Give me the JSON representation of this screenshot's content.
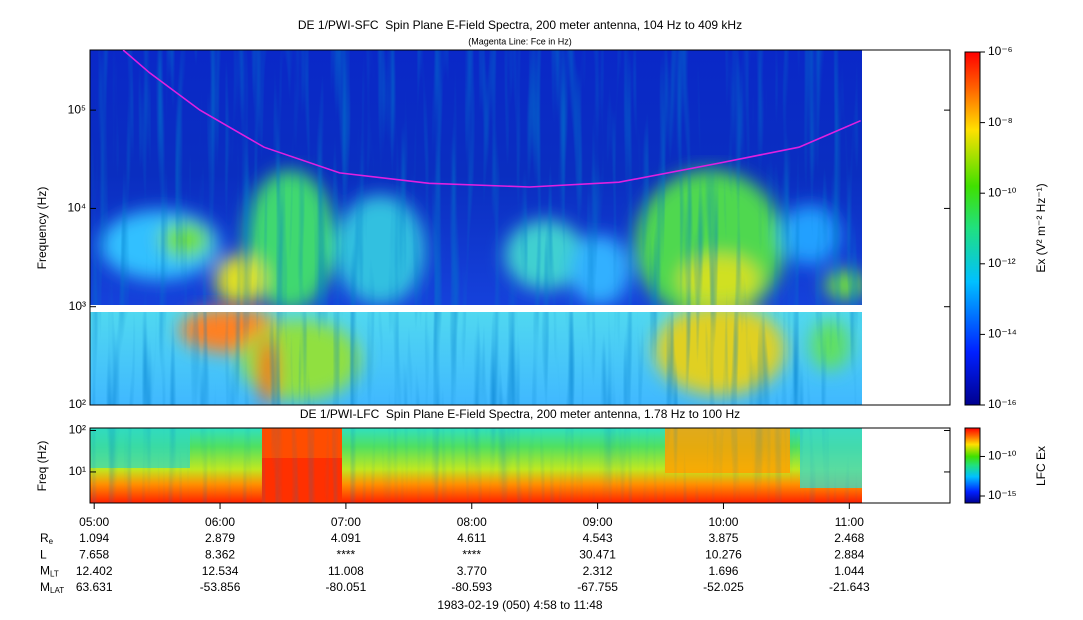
{
  "chart_data": [
    {
      "type": "spectrogram",
      "title": "DE 1/PWI-SFC  Spin Plane E-Field Spectra, 200 meter antenna, 104 Hz to 409 kHz",
      "subtitle": "(Magenta Line: Fce in Hz)",
      "y_label": "Frequency (Hz)",
      "log_y": true,
      "xlim": [
        4.9667,
        11.8
      ],
      "ylim": [
        100,
        409000
      ],
      "yticks": [
        {
          "value": 100,
          "label": "10²"
        },
        {
          "value": 1000,
          "label": "10³"
        },
        {
          "value": 10000,
          "label": "10⁴"
        },
        {
          "value": 100000,
          "label": "10⁵"
        }
      ],
      "series": [
        {
          "name": "Fce",
          "color": "#e020e0",
          "x": [
            5.23,
            5.44,
            5.84,
            6.35,
            6.95,
            7.66,
            8.46,
            9.17,
            9.97,
            10.6,
            11.09
          ],
          "values": [
            409000,
            240000,
            100000,
            42000,
            23000,
            18000,
            16500,
            18500,
            29000,
            42000,
            78000
          ]
        }
      ],
      "colorbar": {
        "label": "Ex (V² m⁻² Hz⁻¹)",
        "clim": [
          1e-16,
          1e-06
        ],
        "ticks": [
          {
            "value": 1e-16,
            "label": "10⁻¹⁶"
          },
          {
            "value": 1e-14,
            "label": "10⁻¹⁴"
          },
          {
            "value": 1e-12,
            "label": "10⁻¹²"
          },
          {
            "value": 1e-10,
            "label": "10⁻¹⁰"
          },
          {
            "value": 1e-08,
            "label": "10⁻⁸"
          },
          {
            "value": 1e-06,
            "label": "10⁻⁶"
          }
        ]
      }
    },
    {
      "type": "spectrogram",
      "title": "DE 1/PWI-LFC  Spin Plane E-Field Spectra, 200 meter antenna, 1.78 Hz to 100 Hz",
      "y_label": "Freq (Hz)",
      "log_y": true,
      "xlim": [
        4.9667,
        11.8
      ],
      "ylim": [
        1.78,
        115
      ],
      "yticks": [
        {
          "value": 10,
          "label": "10¹"
        },
        {
          "value": 100,
          "label": "10²"
        }
      ],
      "xticks": [
        {
          "value": 5,
          "label": "05:00"
        },
        {
          "value": 6,
          "label": "06:00"
        },
        {
          "value": 7,
          "label": "07:00"
        },
        {
          "value": 8,
          "label": "08:00"
        },
        {
          "value": 9,
          "label": "09:00"
        },
        {
          "value": 10,
          "label": "10:00"
        },
        {
          "value": 11,
          "label": "11:00"
        }
      ],
      "colorbar": {
        "label": "LFC Ex",
        "clim": [
          1.3e-16,
          4e-07
        ],
        "ticks": [
          {
            "value": 1e-15,
            "label": "10⁻¹⁵"
          },
          {
            "value": 1e-10,
            "label": "10⁻¹⁰"
          }
        ]
      }
    }
  ],
  "orbit": {
    "rows": [
      {
        "name": "R",
        "sub": "e",
        "values": [
          "1.094",
          "2.879",
          "4.091",
          "4.611",
          "4.543",
          "3.875",
          "2.468"
        ]
      },
      {
        "name": "L",
        "sub": "",
        "values": [
          "7.658",
          "8.362",
          "****",
          "****",
          "30.471",
          "10.276",
          "2.884"
        ]
      },
      {
        "name": "M",
        "sub": "LT",
        "values": [
          "12.402",
          "12.534",
          "11.008",
          "3.770",
          "2.312",
          "1.696",
          "1.044"
        ]
      },
      {
        "name": "M",
        "sub": "LAT",
        "values": [
          "63.631",
          "-53.856",
          "-80.051",
          "-80.593",
          "-67.755",
          "-52.025",
          "-21.643"
        ]
      }
    ],
    "footer": "1983-02-19 (050) 4:58 to 11:48"
  }
}
